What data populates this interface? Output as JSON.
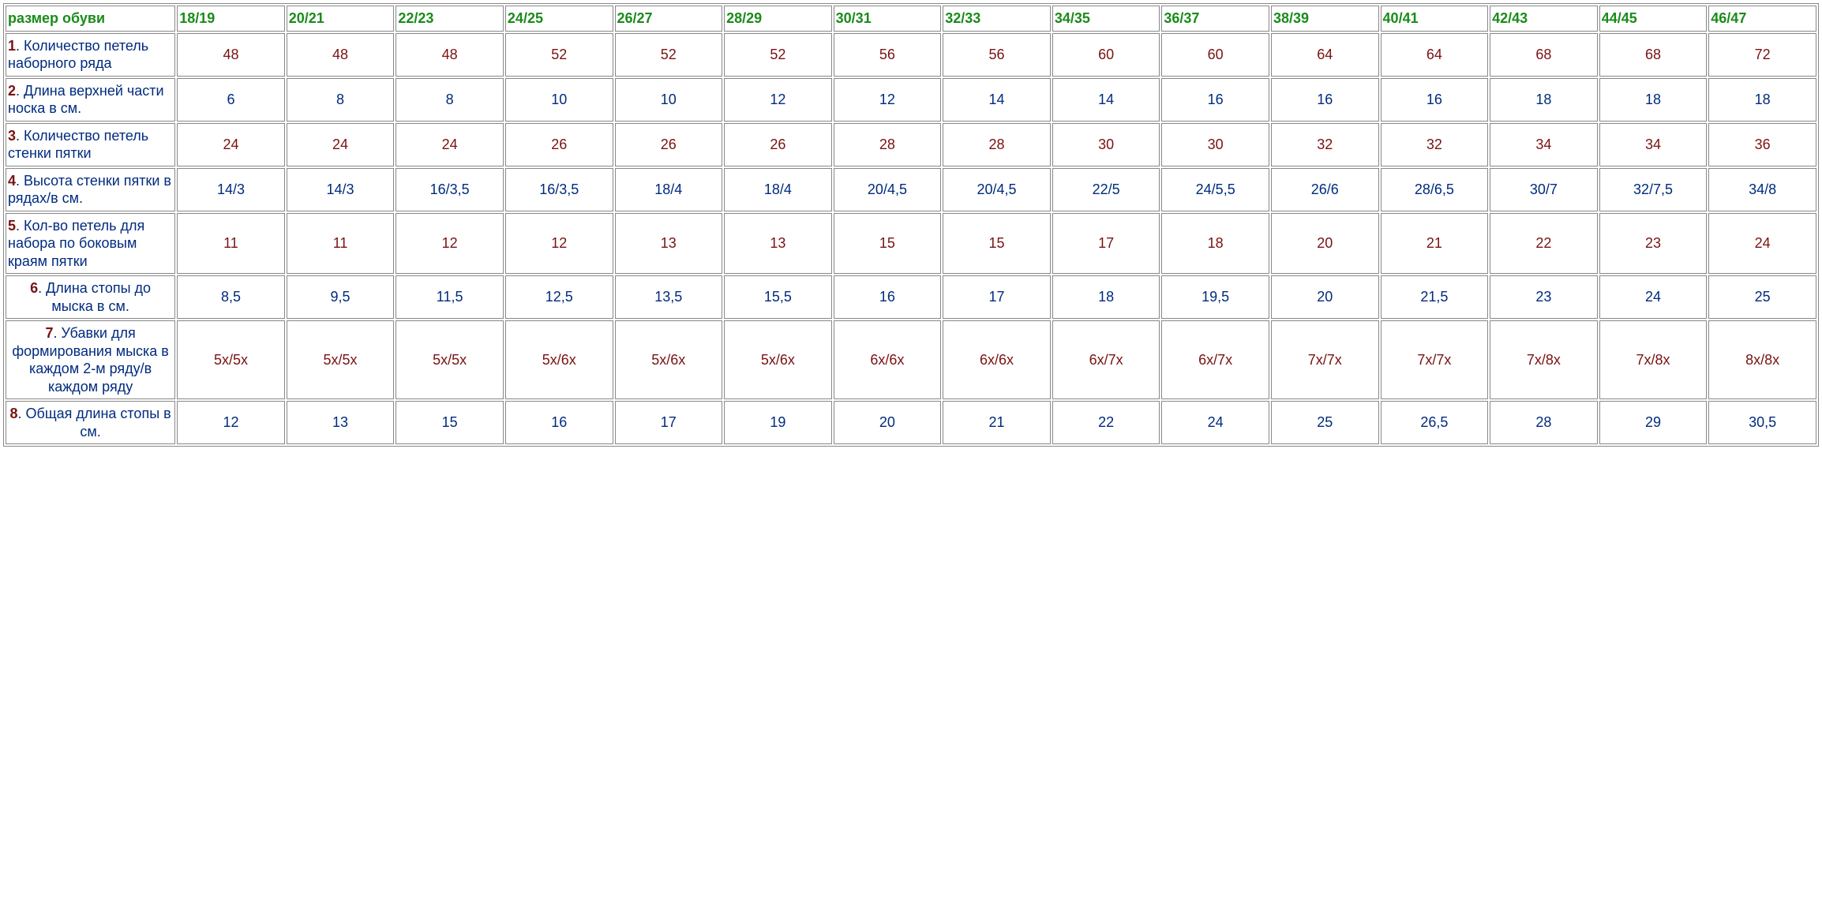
{
  "table": {
    "corner_label": "размер обуви",
    "header_color": "#1a8b1a",
    "border_color": "#888888",
    "rowlabel_text_color": "#002b7f",
    "rowlabel_num_color": "#7a1212",
    "data_colors": {
      "dark_red": "#7a1212",
      "blue": "#002b7f"
    },
    "background_color": "#ffffff",
    "font_family": "Arial",
    "header_fontsize_pt": 14,
    "cell_fontsize_pt": 14,
    "sizes": [
      "18/19",
      "20/21",
      "22/23",
      "24/25",
      "26/27",
      "28/29",
      "30/31",
      "32/33",
      "34/35",
      "36/37",
      "38/39",
      "40/41",
      "42/43",
      "44/45",
      "46/47"
    ],
    "rows": [
      {
        "num": "1",
        "label": ". Количество петель наборного ряда",
        "align": "left",
        "color": "dark_red",
        "values": [
          "48",
          "48",
          "48",
          "52",
          "52",
          "52",
          "56",
          "56",
          "60",
          "60",
          "64",
          "64",
          "68",
          "68",
          "72"
        ]
      },
      {
        "num": "2",
        "label": ". Длина верхней части носка в см.",
        "align": "left",
        "color": "blue",
        "values": [
          "6",
          "8",
          "8",
          "10",
          "10",
          "12",
          "12",
          "14",
          "14",
          "16",
          "16",
          "16",
          "18",
          "18",
          "18"
        ]
      },
      {
        "num": "3",
        "label": ". Количество петель стенки пятки",
        "align": "left",
        "color": "dark_red",
        "values": [
          "24",
          "24",
          "24",
          "26",
          "26",
          "26",
          "28",
          "28",
          "30",
          "30",
          "32",
          "32",
          "34",
          "34",
          "36"
        ]
      },
      {
        "num": "4",
        "label": ". Высота стенки пятки в рядах/в см.",
        "align": "left",
        "color": "blue",
        "values": [
          "14/3",
          "14/3",
          "16/3,5",
          "16/3,5",
          "18/4",
          "18/4",
          "20/4,5",
          "20/4,5",
          "22/5",
          "24/5,5",
          "26/6",
          "28/6,5",
          "30/7",
          "32/7,5",
          "34/8"
        ]
      },
      {
        "num": "5",
        "label": ". Кол-во петель для набора по боковым краям пятки",
        "align": "left",
        "color": "dark_red",
        "values": [
          "11",
          "11",
          "12",
          "12",
          "13",
          "13",
          "15",
          "15",
          "17",
          "18",
          "20",
          "21",
          "22",
          "23",
          "24"
        ]
      },
      {
        "num": "6",
        "label": ". Длина стопы до мыска в см.",
        "align": "center",
        "color": "blue",
        "values": [
          "8,5",
          "9,5",
          "11,5",
          "12,5",
          "13,5",
          "15,5",
          "16",
          "17",
          "18",
          "19,5",
          "20",
          "21,5",
          "23",
          "24",
          "25"
        ]
      },
      {
        "num": "7",
        "label": ". Убавки для формирования мыска в каждом 2-м ряду/в каждом ряду",
        "align": "center",
        "color": "dark_red",
        "values": [
          "5x/5x",
          "5x/5x",
          "5x/5x",
          "5x/6x",
          "5x/6x",
          "5x/6x",
          "6x/6x",
          "6x/6x",
          "6x/7x",
          "6x/7x",
          "7x/7x",
          "7x/7x",
          "7x/8x",
          "7x/8x",
          "8x/8x"
        ]
      },
      {
        "num": "8",
        "label": ". Общая длина стопы в см.",
        "align": "center",
        "color": "blue",
        "values": [
          "12",
          "13",
          "15",
          "16",
          "17",
          "19",
          "20",
          "21",
          "22",
          "24",
          "25",
          "26,5",
          "28",
          "29",
          "30,5"
        ]
      }
    ]
  }
}
